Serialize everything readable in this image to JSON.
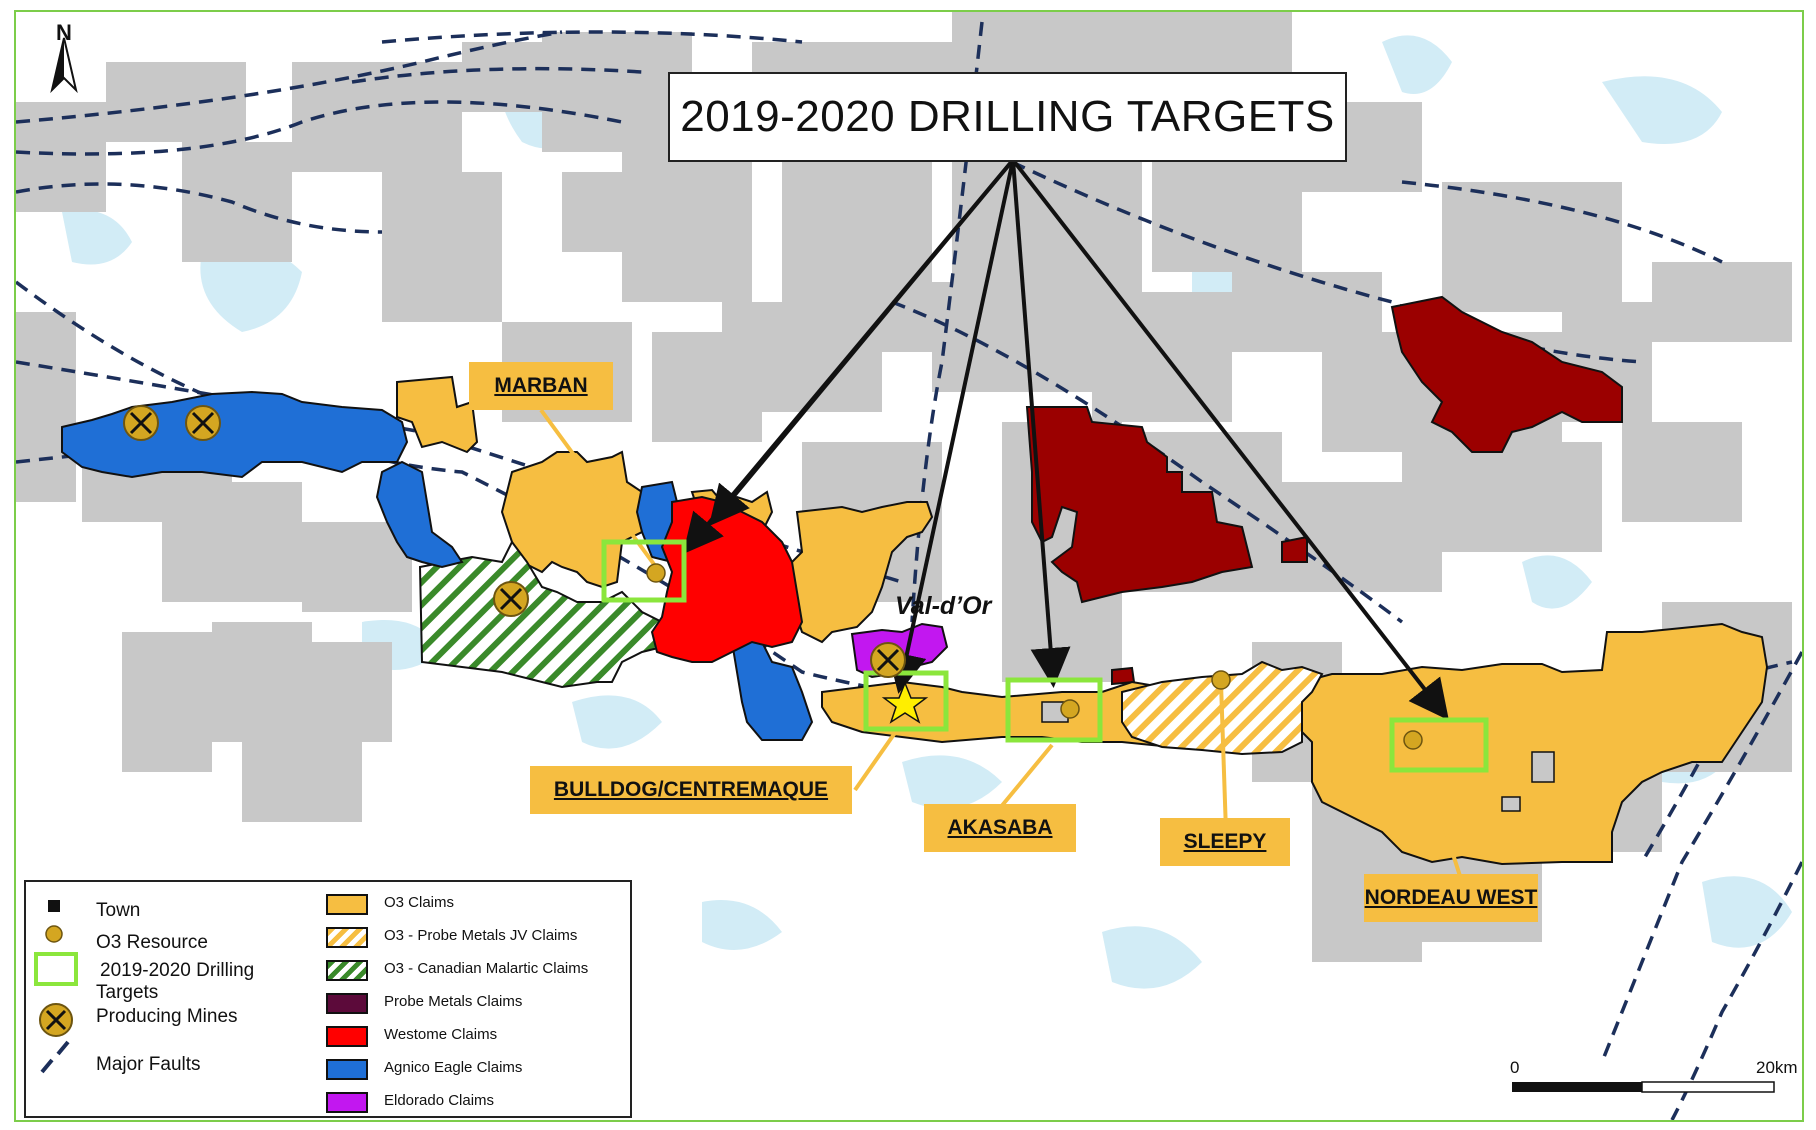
{
  "title": "2019-2020 DRILLING TARGETS",
  "north_label": "N",
  "town": {
    "name": "Val-d’Or"
  },
  "callouts": {
    "marban": "MARBAN",
    "bulldog": "BULLDOG/CENTREMAQUE",
    "akasaba": "AKASABA",
    "sleepy": "SLEEPY",
    "nordeau_west": "NORDEAU WEST"
  },
  "legend": {
    "left": [
      {
        "label": "Town",
        "icon": "town-square-icon"
      },
      {
        "label": "O3 Resource",
        "icon": "resource-dot-icon"
      },
      {
        "label": "2019-2020 Drilling",
        "label2": "Targets",
        "icon": "drilling-target-icon"
      },
      {
        "label": "Producing Mines",
        "icon": "mine-icon"
      },
      {
        "label": "Major Faults",
        "icon": "fault-line-icon"
      }
    ],
    "right": [
      {
        "label": "O3 Claims",
        "color": "#f6be41"
      },
      {
        "label": "O3 - Probe Metals JV Claims",
        "color": "#f6be41",
        "hatch": "#ffffff"
      },
      {
        "label": "O3 - Canadian Malartic Claims",
        "color": "#ffffff",
        "hatch": "#3a8a2a"
      },
      {
        "label": "Probe Metals Claims",
        "color": "#5c0a3a"
      },
      {
        "label": "Westome Claims",
        "color": "#ff0000"
      },
      {
        "label": "Agnico Eagle Claims",
        "color": "#1f6fd6"
      },
      {
        "label": "Eldorado Claims",
        "color": "#c217f0"
      }
    ]
  },
  "scale": {
    "start": "0",
    "end": "20km"
  },
  "colors": {
    "land_claims_grey": "#c8c8c8",
    "water": "#d2ecf6",
    "fault": "#1c2f5a",
    "target_box": "#8be63c",
    "callout": "#f6be41",
    "frame": "#7ccd4a",
    "dark_red": "#9b0000"
  }
}
